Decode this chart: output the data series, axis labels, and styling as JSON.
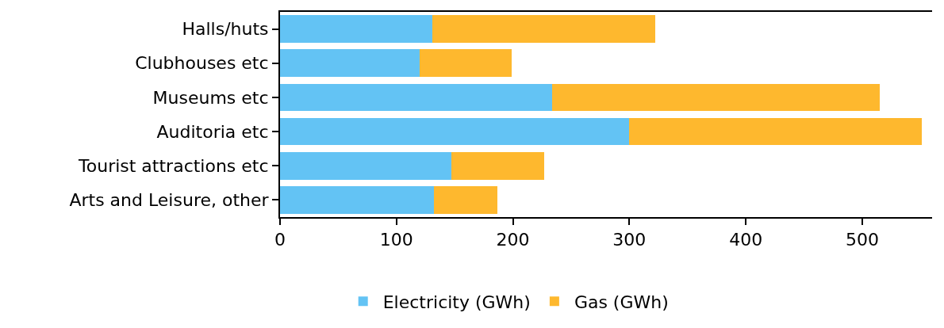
{
  "chart_data": {
    "type": "bar",
    "orientation": "horizontal",
    "stacked": true,
    "categories": [
      "Halls/huts",
      "Clubhouses etc",
      "Museums etc",
      "Auditoria etc",
      "Tourist attractions etc",
      "Arts and Leisure, other"
    ],
    "series": [
      {
        "name": "Electricity (GWh)",
        "color": "#63c3f4",
        "values": [
          131,
          120,
          234,
          300,
          147,
          132
        ]
      },
      {
        "name": "Gas (GWh)",
        "color": "#feb82e",
        "values": [
          191,
          79,
          281,
          251,
          80,
          55
        ]
      }
    ],
    "xlim": [
      0,
      560
    ],
    "xticks": [
      0,
      100,
      200,
      300,
      400,
      500
    ],
    "grid": false,
    "legend": "bottom"
  }
}
